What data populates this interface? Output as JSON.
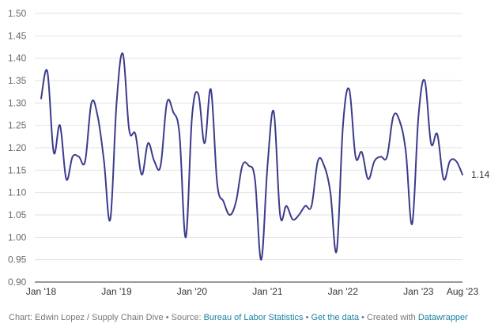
{
  "chart_data": {
    "type": "line",
    "ylim": [
      0.9,
      1.5
    ],
    "yticks": [
      "0.90",
      "0.95",
      "1.00",
      "1.05",
      "1.10",
      "1.15",
      "1.20",
      "1.25",
      "1.30",
      "1.35",
      "1.40",
      "1.45",
      "1.50"
    ],
    "xticks": [
      {
        "label": "Jan '18",
        "month": 0
      },
      {
        "label": "Jan '19",
        "month": 12
      },
      {
        "label": "Jan '20",
        "month": 24
      },
      {
        "label": "Jan '21",
        "month": 36
      },
      {
        "label": "Jan '22",
        "month": 48
      },
      {
        "label": "Jan '23",
        "month": 60
      },
      {
        "label": "Aug '23",
        "month": 67
      }
    ],
    "grid": true,
    "line_color": "#3b3b8c",
    "end_label": "1.14",
    "series": [
      {
        "values": [
          1.31,
          1.37,
          1.19,
          1.25,
          1.13,
          1.18,
          1.18,
          1.17,
          1.3,
          1.27,
          1.17,
          1.04,
          1.3,
          1.41,
          1.24,
          1.23,
          1.14,
          1.21,
          1.17,
          1.16,
          1.3,
          1.28,
          1.23,
          1.0,
          1.27,
          1.32,
          1.21,
          1.33,
          1.12,
          1.08,
          1.05,
          1.08,
          1.16,
          1.16,
          1.13,
          0.95,
          1.16,
          1.28,
          1.05,
          1.07,
          1.04,
          1.05,
          1.07,
          1.07,
          1.17,
          1.16,
          1.1,
          0.97,
          1.25,
          1.33,
          1.18,
          1.19,
          1.13,
          1.17,
          1.18,
          1.18,
          1.27,
          1.26,
          1.19,
          1.03,
          1.27,
          1.35,
          1.21,
          1.23,
          1.13,
          1.17,
          1.17,
          1.14
        ]
      }
    ]
  },
  "footer": {
    "prefix": "Chart: Edwin Lopez / Supply Chain Dive • Source: ",
    "source_link": "Bureau of Labor Statistics",
    "sep": " • ",
    "data_link": "Get the data",
    "suffix": " • Created with ",
    "tool_link": "Datawrapper"
  }
}
